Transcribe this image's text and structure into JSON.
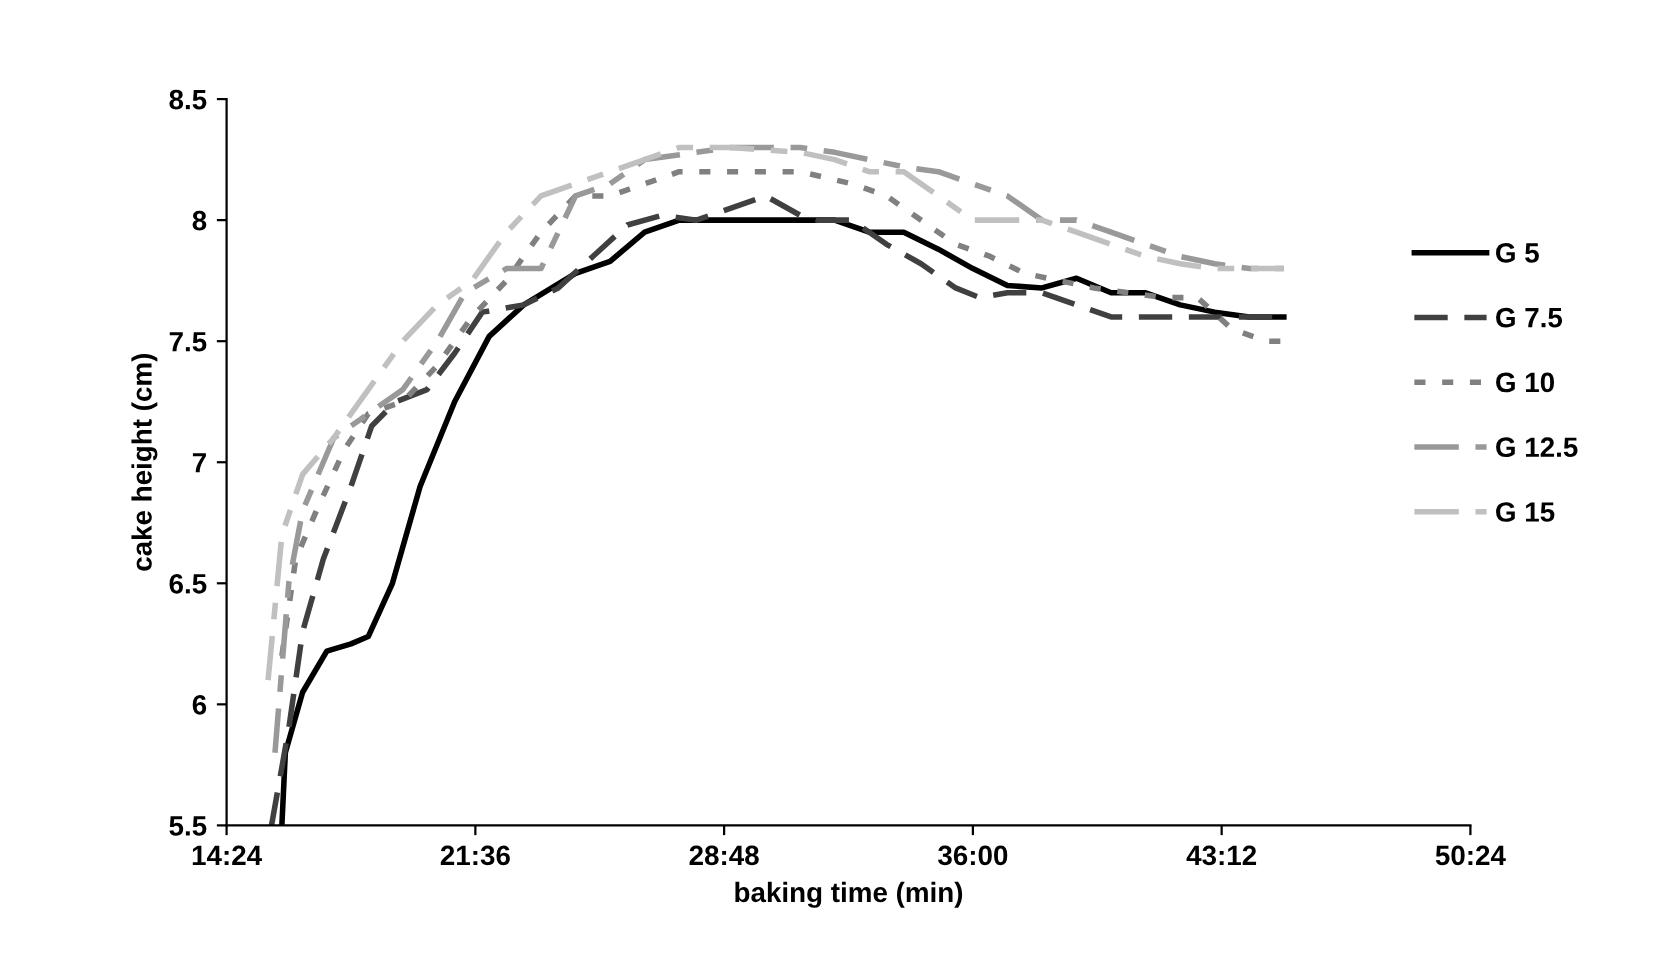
{
  "chart_data": {
    "type": "line",
    "xlabel": "baking time (min)",
    "ylabel": "cake height (cm)",
    "xlim": [
      14.4,
      50.4
    ],
    "xticks": [
      {
        "value": 14.4,
        "label": "14:24"
      },
      {
        "value": 21.6,
        "label": "21:36"
      },
      {
        "value": 28.8,
        "label": "28:48"
      },
      {
        "value": 36,
        "label": "36:00"
      },
      {
        "value": 43.2,
        "label": "43:12"
      },
      {
        "value": 50.4,
        "label": "50:24"
      }
    ],
    "ylim": [
      5.5,
      8.5
    ],
    "yticks": [
      5.5,
      6,
      6.5,
      7,
      7.5,
      8,
      8.5
    ],
    "grid": false,
    "legend": "right",
    "marker": "none",
    "series": [
      {
        "name": "G 5",
        "color": "#000000",
        "line_style": "solid",
        "x": [
          16.0,
          16.1,
          16.6,
          17.3,
          18.0,
          18.5,
          19.2,
          20.0,
          21.0,
          22.0,
          23.0,
          24.5,
          25.5,
          26.5,
          27.5,
          28.5,
          30,
          32,
          33,
          34,
          35,
          36,
          37,
          38,
          39,
          40,
          41,
          42,
          43,
          44,
          45
        ],
        "values": [
          5.5,
          5.8,
          6.05,
          6.22,
          6.25,
          6.28,
          6.5,
          6.9,
          7.25,
          7.52,
          7.65,
          7.78,
          7.83,
          7.95,
          8.0,
          8.0,
          8.0,
          8.0,
          7.95,
          7.95,
          7.88,
          7.8,
          7.73,
          7.72,
          7.76,
          7.7,
          7.7,
          7.65,
          7.62,
          7.6,
          7.6
        ]
      },
      {
        "name": "G 7.5",
        "color": "#404040",
        "line_style": "dashed",
        "x": [
          15.7,
          16.2,
          16.6,
          17.2,
          18.0,
          18.6,
          19.3,
          20.2,
          21.0,
          21.8,
          23.0,
          24.0,
          25.0,
          26.0,
          27.0,
          28.0,
          29,
          30,
          31,
          31.5,
          32.5,
          33.5,
          34.5,
          35.5,
          36.2,
          37,
          38,
          39,
          40,
          41,
          42,
          43,
          44,
          45
        ],
        "values": [
          5.5,
          5.9,
          6.3,
          6.6,
          6.9,
          7.15,
          7.25,
          7.3,
          7.45,
          7.62,
          7.65,
          7.72,
          7.85,
          7.98,
          8.02,
          8.0,
          8.05,
          8.1,
          8.02,
          8.0,
          8.0,
          7.9,
          7.82,
          7.72,
          7.68,
          7.7,
          7.7,
          7.65,
          7.6,
          7.6,
          7.6,
          7.6,
          7.6,
          7.6
        ]
      },
      {
        "name": "G 10",
        "color": "#808080",
        "line_style": "dotted",
        "x": [
          16.0,
          16.4,
          17.0,
          17.8,
          18.5,
          19.5,
          20.5,
          21.5,
          22.5,
          23.5,
          24.5,
          25.5,
          26.5,
          27.5,
          29,
          31,
          32.5,
          33.5,
          34.5,
          35.5,
          36.5,
          37.5,
          38.5,
          39.5,
          40.5,
          41.5,
          42.5,
          43.5,
          44.5,
          45
        ],
        "values": [
          6.2,
          6.6,
          6.8,
          7.05,
          7.2,
          7.25,
          7.4,
          7.6,
          7.75,
          7.95,
          8.1,
          8.1,
          8.15,
          8.2,
          8.2,
          8.2,
          8.15,
          8.1,
          8.0,
          7.9,
          7.85,
          7.78,
          7.75,
          7.72,
          7.7,
          7.68,
          7.68,
          7.55,
          7.5,
          7.5
        ]
      },
      {
        "name": "G 12.5",
        "color": "#999999",
        "line_style": "dashdot",
        "x": [
          15.8,
          16.2,
          16.6,
          17.5,
          18.3,
          19.5,
          20.5,
          21.3,
          22.5,
          23.5,
          24.0,
          24.5,
          25.5,
          26.5,
          28,
          29,
          31,
          32,
          33,
          34,
          35,
          36,
          37,
          38,
          39,
          40,
          41,
          42,
          43,
          44,
          45
        ],
        "values": [
          5.8,
          6.5,
          6.8,
          7.1,
          7.18,
          7.3,
          7.5,
          7.7,
          7.8,
          7.8,
          7.95,
          8.1,
          8.15,
          8.25,
          8.28,
          8.3,
          8.3,
          8.28,
          8.25,
          8.22,
          8.2,
          8.15,
          8.1,
          8.0,
          8.0,
          7.95,
          7.9,
          7.85,
          7.82,
          7.8,
          7.8
        ]
      },
      {
        "name": "G 15",
        "color": "#c0c0c0",
        "line_style": "dashdot",
        "x": [
          15.6,
          16.0,
          16.6,
          17.5,
          18.5,
          19.5,
          20.5,
          21.5,
          22.5,
          23.5,
          24.5,
          25.5,
          26.5,
          27.5,
          29,
          31,
          32,
          33,
          34,
          35,
          36,
          37,
          38,
          39,
          40,
          41,
          42,
          43,
          44,
          45
        ],
        "values": [
          6.1,
          6.7,
          6.95,
          7.1,
          7.3,
          7.5,
          7.65,
          7.75,
          7.95,
          8.1,
          8.15,
          8.2,
          8.25,
          8.3,
          8.3,
          8.28,
          8.25,
          8.2,
          8.2,
          8.1,
          8.0,
          8.0,
          8.0,
          7.95,
          7.9,
          7.85,
          7.82,
          7.8,
          7.8,
          7.8
        ]
      }
    ]
  }
}
